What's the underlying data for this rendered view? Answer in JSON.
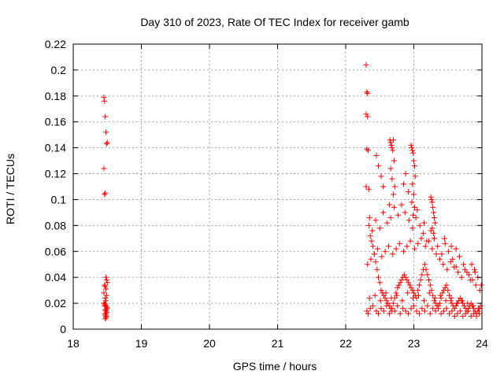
{
  "chart_data": {
    "type": "scatter",
    "title": "Day 310 of 2023, Rate Of TEC Index for receiver gamb",
    "xlabel": "GPS time / hours",
    "ylabel": "ROTI / TECUs",
    "xlim": [
      18,
      24
    ],
    "ylim": [
      0,
      0.22
    ],
    "xticks": [
      "18",
      "19",
      "20",
      "21",
      "22",
      "23",
      "24"
    ],
    "yticks": [
      "0",
      "0.02",
      "0.04",
      "0.06",
      "0.08",
      "0.1",
      "0.12",
      "0.14",
      "0.16",
      "0.18",
      "0.2",
      "0.22"
    ],
    "grid": true,
    "marker": "+",
    "color": "#ff0000",
    "series": [
      {
        "name": "ROTI",
        "x": [
          18.45,
          18.46,
          18.47,
          18.48,
          18.49,
          18.5,
          18.45,
          18.46,
          18.47,
          18.48,
          18.49,
          18.5,
          18.46,
          18.47,
          18.48,
          18.45,
          18.49,
          18.47,
          18.48,
          18.46,
          18.47,
          18.48,
          18.49,
          18.5,
          18.47,
          18.48,
          18.49,
          18.48,
          18.47,
          18.48,
          18.48,
          18.47,
          18.49,
          18.47,
          18.48,
          18.46,
          18.45,
          22.3,
          22.31,
          22.32,
          22.3,
          22.32,
          22.31,
          22.33,
          22.3,
          22.34,
          22.35,
          22.36,
          22.38,
          22.4,
          22.42,
          22.44,
          22.46,
          22.48,
          22.5,
          22.52,
          22.54,
          22.56,
          22.58,
          22.6,
          22.62,
          22.64,
          22.66,
          22.68,
          22.7,
          22.72,
          22.74,
          22.76,
          22.78,
          22.8,
          22.82,
          22.84,
          22.86,
          22.88,
          22.9,
          22.92,
          22.94,
          22.96,
          22.98,
          23.0,
          23.02,
          23.04,
          23.06,
          23.08,
          23.1,
          23.12,
          23.14,
          23.16,
          23.18,
          23.2,
          23.22,
          23.24,
          23.26,
          23.28,
          23.3,
          23.32,
          23.34,
          23.36,
          23.38,
          23.4,
          23.42,
          23.44,
          23.46,
          23.48,
          23.5,
          23.52,
          23.54,
          23.56,
          23.58,
          23.6,
          23.62,
          23.64,
          23.66,
          23.68,
          23.7,
          23.72,
          23.74,
          23.76,
          23.78,
          23.8,
          23.82,
          23.84,
          23.86,
          23.88,
          23.9,
          23.92,
          23.94,
          23.96,
          23.98,
          22.31,
          22.33,
          22.36,
          22.4,
          22.45,
          22.48,
          22.52,
          22.56,
          22.6,
          22.64,
          22.68,
          22.72,
          22.76,
          22.8,
          22.84,
          22.88,
          22.92,
          22.96,
          23.0,
          23.04,
          23.08,
          23.12,
          23.16,
          23.2,
          23.24,
          23.28,
          23.32,
          23.36,
          23.4,
          23.44,
          23.48,
          23.52,
          23.56,
          23.6,
          23.64,
          23.68,
          23.72,
          23.76,
          23.8,
          23.84,
          23.88,
          23.92,
          23.96,
          22.35,
          22.43,
          22.51,
          22.59,
          22.67,
          22.75,
          22.83,
          22.91,
          22.99,
          23.07,
          23.15,
          23.23,
          23.31,
          23.39,
          23.47,
          23.55,
          23.63,
          23.71,
          23.79,
          23.87,
          23.95,
          22.32,
          22.37,
          22.42,
          22.47,
          22.53,
          22.58,
          22.63,
          22.69,
          22.74,
          22.79,
          22.85,
          22.9,
          22.95,
          23.01,
          23.06,
          23.11,
          23.17,
          23.22,
          23.27,
          23.33,
          23.38,
          23.43,
          23.49,
          23.54,
          23.59,
          23.65,
          23.7,
          23.75,
          23.81,
          23.86,
          23.91,
          23.97,
          22.34,
          22.39,
          22.44,
          22.5,
          22.55,
          22.61,
          22.66,
          22.71,
          22.77,
          22.82,
          22.87,
          22.93,
          22.98,
          23.03,
          23.09,
          23.14,
          23.19,
          23.25,
          23.3,
          23.35,
          23.41,
          23.46,
          23.51,
          23.57,
          23.62,
          23.67,
          23.73,
          23.78,
          23.83,
          23.89,
          23.94,
          23.99,
          22.65,
          22.66,
          22.67,
          22.68,
          22.69,
          22.7,
          22.71,
          22.66,
          22.68,
          22.7,
          22.64,
          22.72,
          22.96,
          22.97,
          22.98,
          22.99,
          23.0,
          23.01,
          23.02,
          22.98,
          23.0,
          22.97,
          23.01,
          22.99,
          23.25,
          23.26,
          23.27,
          23.28,
          23.29,
          23.3,
          23.31,
          23.27,
          23.29,
          23.3,
          22.45,
          22.48,
          22.52,
          22.55,
          22.85,
          22.88,
          22.92,
          23.05,
          23.15,
          23.45,
          23.55,
          23.62,
          23.85,
          23.9
        ],
        "y": [
          0.179,
          0.176,
          0.164,
          0.152,
          0.143,
          0.144,
          0.124,
          0.104,
          0.105,
          0.04,
          0.038,
          0.036,
          0.034,
          0.033,
          0.031,
          0.028,
          0.026,
          0.024,
          0.022,
          0.02,
          0.019,
          0.018,
          0.017,
          0.016,
          0.015,
          0.014,
          0.013,
          0.012,
          0.011,
          0.01,
          0.009,
          0.008,
          0.01,
          0.012,
          0.015,
          0.018,
          0.02,
          0.204,
          0.183,
          0.182,
          0.166,
          0.164,
          0.139,
          0.138,
          0.11,
          0.108,
          0.086,
          0.072,
          0.068,
          0.064,
          0.058,
          0.052,
          0.046,
          0.04,
          0.036,
          0.03,
          0.028,
          0.026,
          0.024,
          0.022,
          0.02,
          0.018,
          0.016,
          0.014,
          0.02,
          0.024,
          0.028,
          0.032,
          0.034,
          0.036,
          0.038,
          0.04,
          0.042,
          0.04,
          0.038,
          0.036,
          0.034,
          0.032,
          0.03,
          0.028,
          0.026,
          0.024,
          0.03,
          0.034,
          0.038,
          0.042,
          0.046,
          0.05,
          0.046,
          0.042,
          0.038,
          0.034,
          0.03,
          0.026,
          0.022,
          0.02,
          0.018,
          0.016,
          0.02,
          0.024,
          0.028,
          0.03,
          0.032,
          0.034,
          0.03,
          0.026,
          0.022,
          0.02,
          0.018,
          0.016,
          0.018,
          0.02,
          0.022,
          0.024,
          0.022,
          0.02,
          0.018,
          0.016,
          0.014,
          0.016,
          0.018,
          0.02,
          0.018,
          0.016,
          0.014,
          0.012,
          0.014,
          0.016,
          0.018,
          0.014,
          0.012,
          0.016,
          0.018,
          0.014,
          0.012,
          0.016,
          0.014,
          0.018,
          0.012,
          0.016,
          0.014,
          0.018,
          0.012,
          0.016,
          0.014,
          0.012,
          0.016,
          0.018,
          0.014,
          0.012,
          0.016,
          0.014,
          0.018,
          0.012,
          0.016,
          0.014,
          0.018,
          0.012,
          0.014,
          0.016,
          0.012,
          0.014,
          0.01,
          0.012,
          0.014,
          0.01,
          0.012,
          0.014,
          0.01,
          0.012,
          0.01,
          0.012,
          0.024,
          0.026,
          0.022,
          0.028,
          0.024,
          0.026,
          0.022,
          0.028,
          0.024,
          0.026,
          0.022,
          0.028,
          0.024,
          0.026,
          0.022,
          0.024,
          0.02,
          0.022,
          0.02,
          0.018,
          0.016,
          0.05,
          0.054,
          0.058,
          0.062,
          0.056,
          0.06,
          0.064,
          0.058,
          0.062,
          0.066,
          0.06,
          0.064,
          0.068,
          0.062,
          0.066,
          0.07,
          0.064,
          0.068,
          0.062,
          0.058,
          0.054,
          0.05,
          0.046,
          0.052,
          0.048,
          0.044,
          0.04,
          0.046,
          0.042,
          0.038,
          0.034,
          0.03,
          0.08,
          0.076,
          0.084,
          0.078,
          0.09,
          0.082,
          0.086,
          0.094,
          0.088,
          0.096,
          0.09,
          0.084,
          0.078,
          0.086,
          0.08,
          0.074,
          0.068,
          0.076,
          0.07,
          0.064,
          0.058,
          0.066,
          0.06,
          0.054,
          0.048,
          0.056,
          0.05,
          0.044,
          0.038,
          0.046,
          0.04,
          0.034,
          0.146,
          0.144,
          0.142,
          0.14,
          0.138,
          0.146,
          0.13,
          0.124,
          0.116,
          0.104,
          0.096,
          0.11,
          0.142,
          0.14,
          0.138,
          0.136,
          0.13,
          0.126,
          0.118,
          0.112,
          0.104,
          0.098,
          0.094,
          0.088,
          0.102,
          0.1,
          0.098,
          0.094,
          0.09,
          0.086,
          0.082,
          0.078,
          0.074,
          0.07,
          0.134,
          0.126,
          0.118,
          0.11,
          0.112,
          0.12,
          0.106,
          0.092,
          0.082,
          0.07,
          0.064,
          0.062,
          0.05,
          0.044
        ]
      }
    ]
  }
}
